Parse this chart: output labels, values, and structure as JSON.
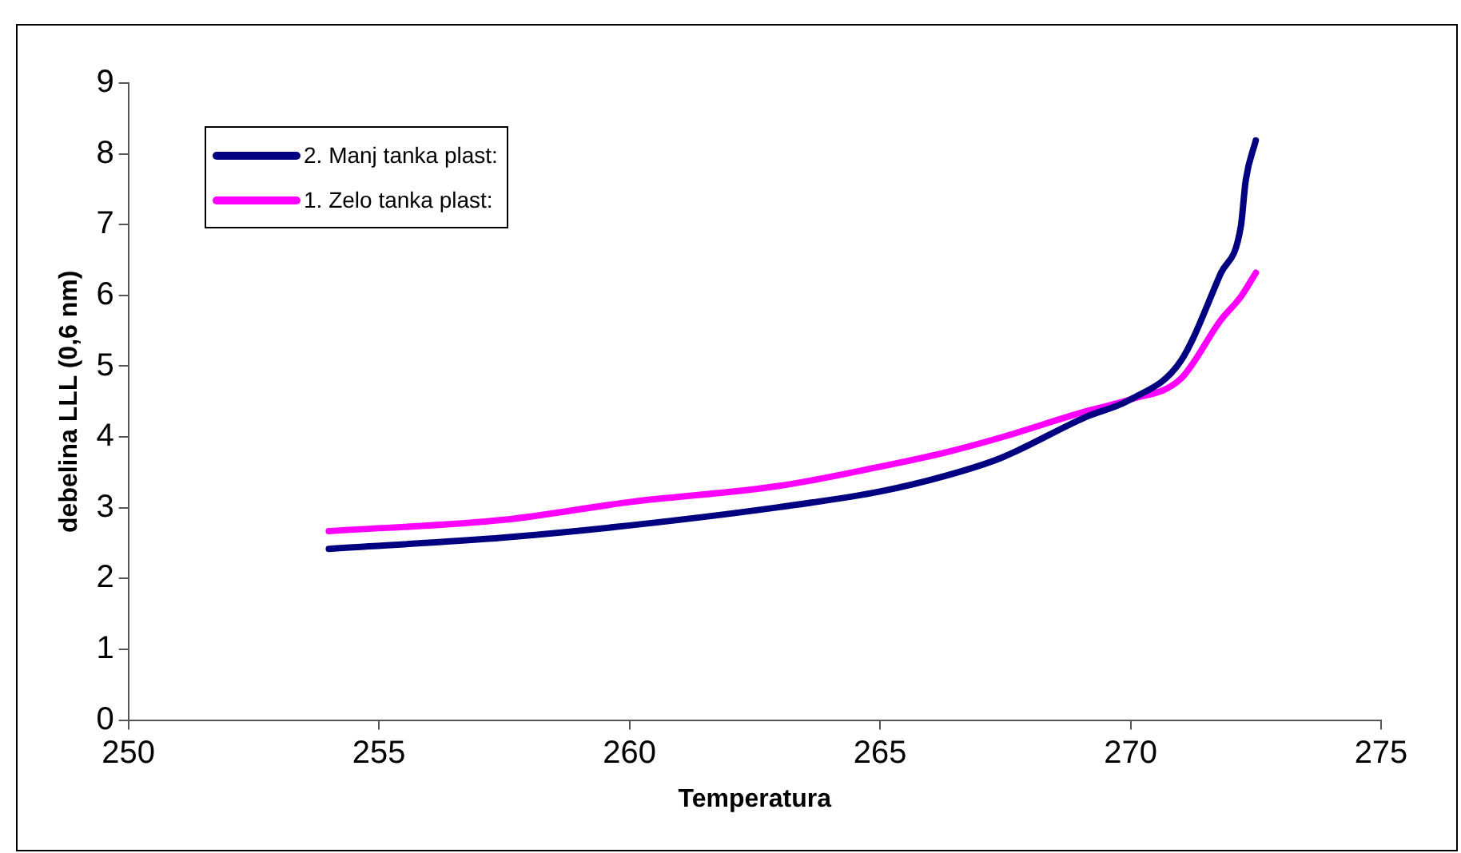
{
  "chart_data": {
    "type": "line",
    "xlabel": "Temperatura",
    "ylabel": "debelina LLL (0,6 nm)",
    "xlim": [
      250,
      275
    ],
    "xticks": [
      250,
      255,
      260,
      265,
      270,
      275
    ],
    "ylim": [
      0,
      9
    ],
    "yticks": [
      0,
      1,
      2,
      3,
      4,
      5,
      6,
      7,
      8,
      9
    ],
    "grid": false,
    "legend": "top left",
    "marker": "none",
    "line_style": "solid",
    "series": [
      {
        "name": "2. Manj tanka plast:",
        "color": "#000080",
        "x": [
          254,
          257.5,
          260,
          263,
          265,
          266.3,
          267.4,
          269.1,
          270,
          271,
          271.8,
          272.2,
          272.3,
          272.5
        ],
        "values": [
          2.42,
          2.58,
          2.75,
          3.01,
          3.23,
          3.45,
          3.7,
          4.28,
          4.53,
          5.07,
          6.31,
          6.97,
          7.63,
          8.19
        ]
      },
      {
        "name": "1. Zelo tanka plast:",
        "color": "#ff00ff",
        "x": [
          254,
          257.5,
          260,
          263,
          265,
          266.3,
          267.4,
          269.1,
          270,
          271,
          271.8,
          272.2,
          272.5
        ],
        "values": [
          2.67,
          2.83,
          3.08,
          3.31,
          3.58,
          3.78,
          3.99,
          4.36,
          4.53,
          4.82,
          5.65,
          5.98,
          6.32
        ]
      }
    ]
  }
}
